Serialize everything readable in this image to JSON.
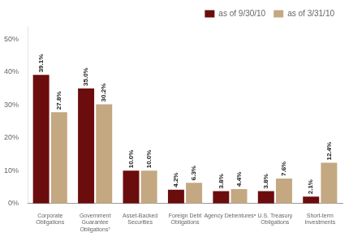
{
  "chart_data": {
    "type": "bar",
    "categories": [
      "Corporate\nObligations",
      "Government\nGuarantee\nObligations⁷",
      "Asset-Backed\nSecurities",
      "Foreign Debt\nObligations",
      "Agency Debenturesᵃ",
      "U.S. Treasury\nObligations",
      "Short-term\nInvestments"
    ],
    "series": [
      {
        "name": "as of 9/30/10",
        "color": "#6B0D0D",
        "values": [
          39.1,
          35.0,
          10.0,
          4.2,
          3.8,
          3.8,
          2.1
        ],
        "value_labels": [
          "39.1%",
          "35.0%",
          "10.0%",
          "4.2%",
          "3.8%",
          "3.8%",
          "2.1%"
        ]
      },
      {
        "name": "as of 3/31/10",
        "color": "#C4A882",
        "values": [
          27.8,
          30.2,
          10.0,
          6.3,
          4.4,
          7.6,
          12.4
        ],
        "value_labels": [
          "27.8%",
          "30.2%",
          "10.0%",
          "6.3%",
          "4.4%",
          "7.6%",
          "12.4%"
        ]
      }
    ],
    "ylim": [
      0,
      54
    ],
    "yticks": [
      {
        "value": 0,
        "label": "0%"
      },
      {
        "value": 10,
        "label": "10%"
      },
      {
        "value": 20,
        "label": "20%"
      },
      {
        "value": 30,
        "label": "30%"
      },
      {
        "value": 40,
        "label": "40%"
      },
      {
        "value": 50,
        "label": "50%"
      }
    ],
    "grid": false,
    "legend": "upper right",
    "data_labels": true
  }
}
